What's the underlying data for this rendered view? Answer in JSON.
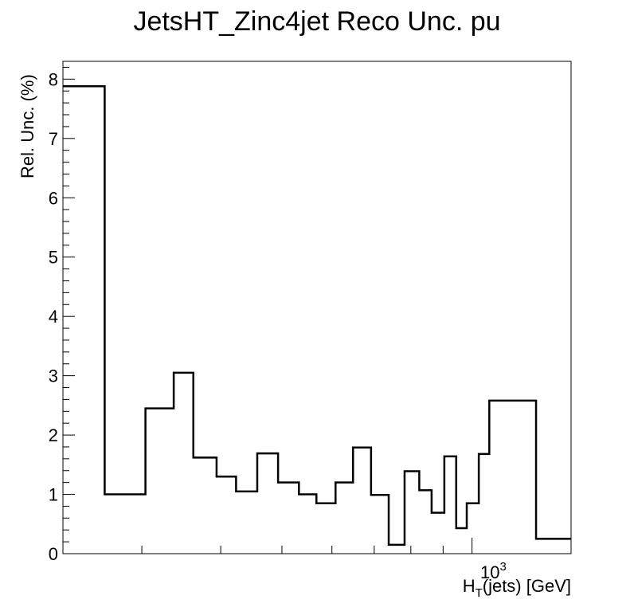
{
  "chart_data": {
    "type": "histogram",
    "title": "JetsHT_Zinc4jet Reco Unc. pu",
    "xlabel_main": "H",
    "xlabel_sub": "T",
    "xlabel_rest": "(jets) [GeV]",
    "ylabel": "Rel. Unc. (%)",
    "x_scale": "log",
    "x_tick_label_base": "10",
    "x_tick_label_exp": "3",
    "x_tick_label_value": 1000,
    "xlim": [
      225,
      1435
    ],
    "ylim": [
      0,
      8.3
    ],
    "y_ticks": [
      0,
      1,
      2,
      3,
      4,
      5,
      6,
      7,
      8
    ],
    "grid": false,
    "bins": [
      {
        "low": 225,
        "high": 262,
        "value": 7.88
      },
      {
        "low": 262,
        "high": 304,
        "value": 1.0
      },
      {
        "low": 304,
        "high": 337,
        "value": 2.45
      },
      {
        "low": 337,
        "high": 362,
        "value": 3.05
      },
      {
        "low": 362,
        "high": 394,
        "value": 1.62
      },
      {
        "low": 394,
        "high": 423,
        "value": 1.3
      },
      {
        "low": 423,
        "high": 457,
        "value": 1.05
      },
      {
        "low": 457,
        "high": 493,
        "value": 1.69
      },
      {
        "low": 493,
        "high": 532,
        "value": 1.2
      },
      {
        "low": 532,
        "high": 567,
        "value": 1.0
      },
      {
        "low": 567,
        "high": 608,
        "value": 0.85
      },
      {
        "low": 608,
        "high": 648,
        "value": 1.2
      },
      {
        "low": 648,
        "high": 692,
        "value": 1.79
      },
      {
        "low": 692,
        "high": 738,
        "value": 0.99
      },
      {
        "low": 738,
        "high": 782,
        "value": 0.15
      },
      {
        "low": 782,
        "high": 825,
        "value": 1.39
      },
      {
        "low": 825,
        "high": 863,
        "value": 1.07
      },
      {
        "low": 863,
        "high": 904,
        "value": 0.69
      },
      {
        "low": 904,
        "high": 944,
        "value": 1.64
      },
      {
        "low": 944,
        "high": 981,
        "value": 0.43
      },
      {
        "low": 981,
        "high": 1025,
        "value": 0.85
      },
      {
        "low": 1025,
        "high": 1065,
        "value": 1.68
      },
      {
        "low": 1065,
        "high": 1263,
        "value": 2.58
      },
      {
        "low": 1263,
        "high": 1435,
        "value": 0.25
      }
    ]
  }
}
